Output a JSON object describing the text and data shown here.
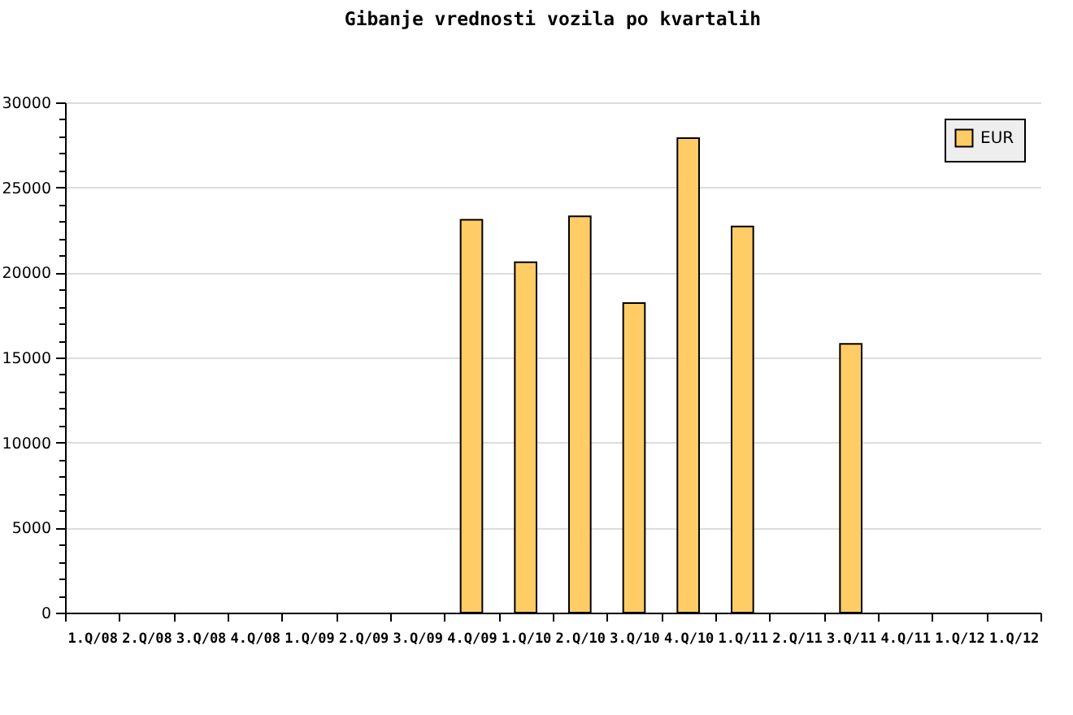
{
  "chart_data": {
    "type": "bar",
    "title": "Gibanje vrednosti vozila po kvartalih",
    "categories": [
      "1.Q/08",
      "2.Q/08",
      "3.Q/08",
      "4.Q/08",
      "1.Q/09",
      "2.Q/09",
      "3.Q/09",
      "4.Q/09",
      "1.Q/10",
      "2.Q/10",
      "3.Q/10",
      "4.Q/10",
      "1.Q/11",
      "2.Q/11",
      "3.Q/11",
      "4.Q/11",
      "1.Q/12",
      "1.Q/12"
    ],
    "series": [
      {
        "name": "EUR",
        "color": "#ffcc66",
        "values": [
          null,
          null,
          null,
          null,
          null,
          null,
          null,
          23100,
          20600,
          23300,
          18200,
          27900,
          22700,
          null,
          15800,
          null,
          null,
          null
        ]
      }
    ],
    "ylim": [
      0,
      30000
    ],
    "yticks": [
      0,
      {
        "value": 1000,
        "label": null
      },
      {
        "value": 2000,
        "label": null
      },
      {
        "value": 3000,
        "label": null
      },
      {
        "value": 4000,
        "label": null
      },
      5000,
      {
        "value": 6000,
        "label": null
      },
      {
        "value": 7000,
        "label": null
      },
      {
        "value": 8000,
        "label": null
      },
      {
        "value": 9000,
        "label": null
      },
      10000,
      {
        "value": 11000,
        "label": null
      },
      {
        "value": 12000,
        "label": null
      },
      {
        "value": 13000,
        "label": null
      },
      {
        "value": 14000,
        "label": null
      },
      15000,
      {
        "value": 16000,
        "label": null
      },
      {
        "value": 17000,
        "label": null
      },
      {
        "value": 18000,
        "label": null
      },
      {
        "value": 19000,
        "label": null
      },
      20000,
      {
        "value": 21000,
        "label": null
      },
      {
        "value": 22000,
        "label": null
      },
      {
        "value": 23000,
        "label": null
      },
      {
        "value": 24000,
        "label": null
      },
      25000,
      {
        "value": 26000,
        "label": null
      },
      {
        "value": 27000,
        "label": null
      },
      {
        "value": 28000,
        "label": null
      },
      {
        "value": 29000,
        "label": null
      },
      30000
    ],
    "grid": "y",
    "legend": "top right"
  }
}
